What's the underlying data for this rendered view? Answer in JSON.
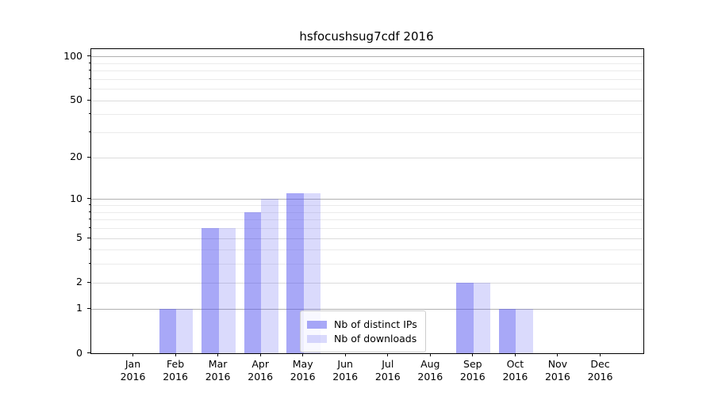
{
  "title": "hsfocushsug7cdf 2016",
  "legend": {
    "items": [
      {
        "label": "Nb of distinct IPs"
      },
      {
        "label": "Nb of downloads"
      }
    ]
  },
  "chart_data": {
    "type": "bar",
    "title": "hsfocushsug7cdf 2016",
    "categories": [
      "Jan 2016",
      "Feb 2016",
      "Mar 2016",
      "Apr 2016",
      "May 2016",
      "Jun 2016",
      "Jul 2016",
      "Aug 2016",
      "Sep 2016",
      "Oct 2016",
      "Nov 2016",
      "Dec 2016"
    ],
    "series": [
      {
        "name": "Nb of distinct IPs",
        "color": "rgba(85,85,240,0.51)",
        "values": [
          0,
          1,
          6,
          8,
          11,
          0,
          0,
          0,
          2,
          1,
          0,
          0
        ]
      },
      {
        "name": "Nb of downloads",
        "color": "rgba(85,85,240,0.22)",
        "values": [
          0,
          1,
          6,
          10,
          11,
          0,
          0,
          0,
          2,
          1,
          0,
          0
        ]
      }
    ],
    "yscale": "log1p",
    "ylim": [
      0,
      112
    ],
    "yticks": [
      0,
      1,
      2,
      5,
      10,
      20,
      50,
      100
    ],
    "yticks_minor": [
      3,
      4,
      6,
      7,
      8,
      9,
      30,
      40,
      60,
      70,
      80,
      90
    ],
    "grid": true,
    "legend_position": "inside lower center-right",
    "colors": {
      "grid_decade": "#b0b0b0",
      "grid_labeled": "#dcdcdc",
      "grid_minor": "#ebebeb",
      "axis": "#000000"
    }
  }
}
